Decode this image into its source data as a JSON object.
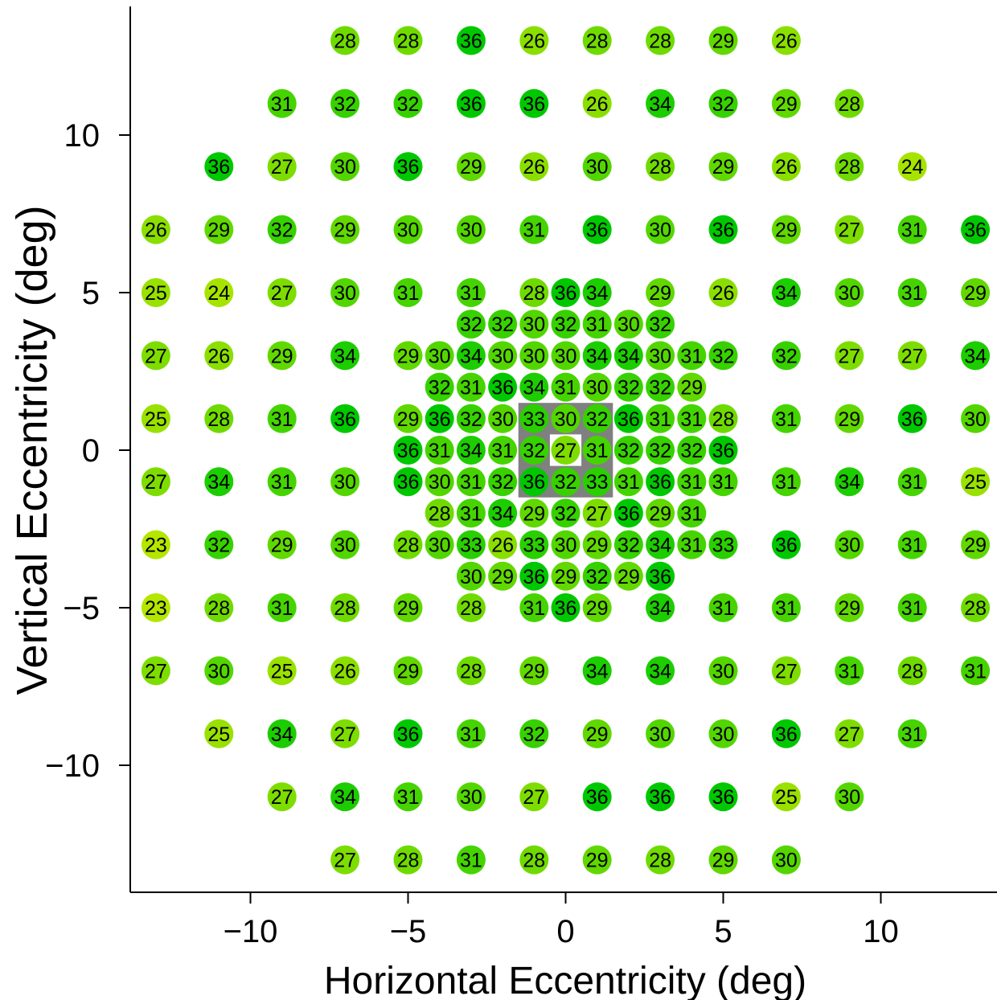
{
  "chart_data": {
    "type": "scatter",
    "title": "",
    "xlabel": "Horizontal Eccentricity (deg)",
    "ylabel": "Vertical Eccentricity (deg)",
    "xlim": [
      -14,
      14
    ],
    "ylim": [
      -14,
      14
    ],
    "xticks": [
      -10,
      -5,
      0,
      5,
      10
    ],
    "yticks": [
      -10,
      -5,
      0,
      5,
      10
    ],
    "grid": false,
    "legend": "none",
    "color_scale": {
      "low": 23,
      "high": 36,
      "low_color": "#b4e600",
      "high_color": "#00c800"
    },
    "highlight_region": {
      "x": [
        -1.5,
        1.5
      ],
      "y": [
        -1.5,
        1.5
      ],
      "inner": [
        -0.5,
        0.5
      ],
      "color": "#808080"
    },
    "rows": [
      {
        "y": 13,
        "x": [
          -7,
          -5,
          -3,
          -1,
          1,
          3,
          5,
          7
        ],
        "v": [
          28,
          28,
          36,
          26,
          28,
          28,
          29,
          26
        ]
      },
      {
        "y": 11,
        "x": [
          -9,
          -7,
          -5,
          -3,
          -1,
          1,
          3,
          5,
          7,
          9
        ],
        "v": [
          31,
          32,
          32,
          36,
          36,
          26,
          34,
          32,
          29,
          28
        ]
      },
      {
        "y": 9,
        "x": [
          -11,
          -9,
          -7,
          -5,
          -3,
          -1,
          1,
          3,
          5,
          7,
          9,
          11
        ],
        "v": [
          36,
          27,
          30,
          36,
          29,
          26,
          30,
          28,
          29,
          26,
          28,
          24
        ]
      },
      {
        "y": 7,
        "x": [
          -13,
          -11,
          -9,
          -7,
          -5,
          -3,
          -1,
          1,
          3,
          5,
          7,
          9,
          11,
          13
        ],
        "v": [
          26,
          29,
          32,
          29,
          30,
          30,
          31,
          36,
          30,
          36,
          29,
          27,
          31,
          36
        ]
      },
      {
        "y": 5,
        "x": [
          -13,
          -11,
          -9,
          -7,
          -5,
          -3,
          -1,
          0,
          1,
          3,
          5,
          7,
          9,
          11,
          13
        ],
        "v": [
          25,
          24,
          27,
          30,
          31,
          31,
          28,
          36,
          34,
          29,
          26,
          34,
          30,
          31,
          29
        ]
      },
      {
        "y": 4,
        "x": [
          -3,
          -2,
          -1,
          0,
          1,
          2,
          3
        ],
        "v": [
          32,
          32,
          30,
          32,
          31,
          30,
          32
        ]
      },
      {
        "y": 3,
        "x": [
          -13,
          -11,
          -9,
          -7,
          -5,
          -4,
          -3,
          -2,
          -1,
          0,
          1,
          2,
          3,
          4,
          5,
          7,
          9,
          11,
          13
        ],
        "v": [
          27,
          26,
          29,
          34,
          29,
          30,
          34,
          30,
          30,
          30,
          34,
          34,
          30,
          31,
          32,
          32,
          27,
          27,
          34
        ]
      },
      {
        "y": 2,
        "x": [
          -4,
          -3,
          -2,
          -1,
          0,
          1,
          2,
          3,
          4
        ],
        "v": [
          32,
          31,
          36,
          34,
          31,
          30,
          32,
          32,
          29
        ]
      },
      {
        "y": 1,
        "x": [
          -13,
          -11,
          -9,
          -7,
          -5,
          -4,
          -3,
          -2,
          -1,
          0,
          1,
          2,
          3,
          4,
          5,
          7,
          9,
          11,
          13
        ],
        "v": [
          25,
          28,
          31,
          36,
          29,
          36,
          32,
          30,
          33,
          30,
          32,
          36,
          31,
          31,
          28,
          31,
          29,
          36,
          30
        ]
      },
      {
        "y": 0,
        "x": [
          -5,
          -4,
          -3,
          -2,
          -1,
          0,
          1,
          2,
          3,
          4,
          5
        ],
        "v": [
          36,
          31,
          34,
          31,
          32,
          27,
          31,
          32,
          32,
          32,
          36
        ]
      },
      {
        "y": -1,
        "x": [
          -13,
          -11,
          -9,
          -7,
          -5,
          -4,
          -3,
          -2,
          -1,
          0,
          1,
          2,
          3,
          4,
          5,
          7,
          9,
          11,
          13
        ],
        "v": [
          27,
          34,
          31,
          30,
          36,
          30,
          31,
          32,
          36,
          32,
          33,
          31,
          36,
          31,
          31,
          31,
          34,
          31,
          25
        ]
      },
      {
        "y": -2,
        "x": [
          -4,
          -3,
          -2,
          -1,
          0,
          1,
          2,
          3,
          4
        ],
        "v": [
          28,
          31,
          34,
          29,
          32,
          27,
          36,
          29,
          31
        ]
      },
      {
        "y": -3,
        "x": [
          -13,
          -11,
          -9,
          -7,
          -5,
          -4,
          -3,
          -2,
          -1,
          0,
          1,
          2,
          3,
          4,
          5,
          7,
          9,
          11,
          13
        ],
        "v": [
          23,
          32,
          29,
          30,
          28,
          30,
          33,
          26,
          33,
          30,
          29,
          32,
          34,
          31,
          33,
          36,
          30,
          31,
          29
        ]
      },
      {
        "y": -4,
        "x": [
          -3,
          -2,
          -1,
          0,
          1,
          2,
          3
        ],
        "v": [
          30,
          29,
          36,
          29,
          32,
          29,
          36
        ]
      },
      {
        "y": -5,
        "x": [
          -13,
          -11,
          -9,
          -7,
          -5,
          -3,
          -1,
          0,
          1,
          3,
          5,
          7,
          9,
          11,
          13
        ],
        "v": [
          23,
          28,
          31,
          28,
          29,
          28,
          31,
          36,
          29,
          34,
          31,
          31,
          29,
          31,
          28
        ]
      },
      {
        "y": -7,
        "x": [
          -13,
          -11,
          -9,
          -7,
          -5,
          -3,
          -1,
          1,
          3,
          5,
          7,
          9,
          11,
          13
        ],
        "v": [
          27,
          30,
          25,
          26,
          29,
          28,
          29,
          34,
          34,
          30,
          27,
          31,
          28,
          31
        ]
      },
      {
        "y": -9,
        "x": [
          -11,
          -9,
          -7,
          -5,
          -3,
          -1,
          1,
          3,
          5,
          7,
          9,
          11
        ],
        "v": [
          25,
          34,
          27,
          36,
          31,
          32,
          29,
          30,
          30,
          36,
          27,
          31
        ]
      },
      {
        "y": -11,
        "x": [
          -9,
          -7,
          -5,
          -3,
          -1,
          1,
          3,
          5,
          7,
          9
        ],
        "v": [
          27,
          34,
          31,
          30,
          27,
          36,
          36,
          36,
          25,
          30
        ]
      },
      {
        "y": -13,
        "x": [
          -7,
          -5,
          -3,
          -1,
          1,
          3,
          5,
          7
        ],
        "v": [
          27,
          28,
          31,
          28,
          29,
          28,
          29,
          30
        ]
      }
    ]
  }
}
